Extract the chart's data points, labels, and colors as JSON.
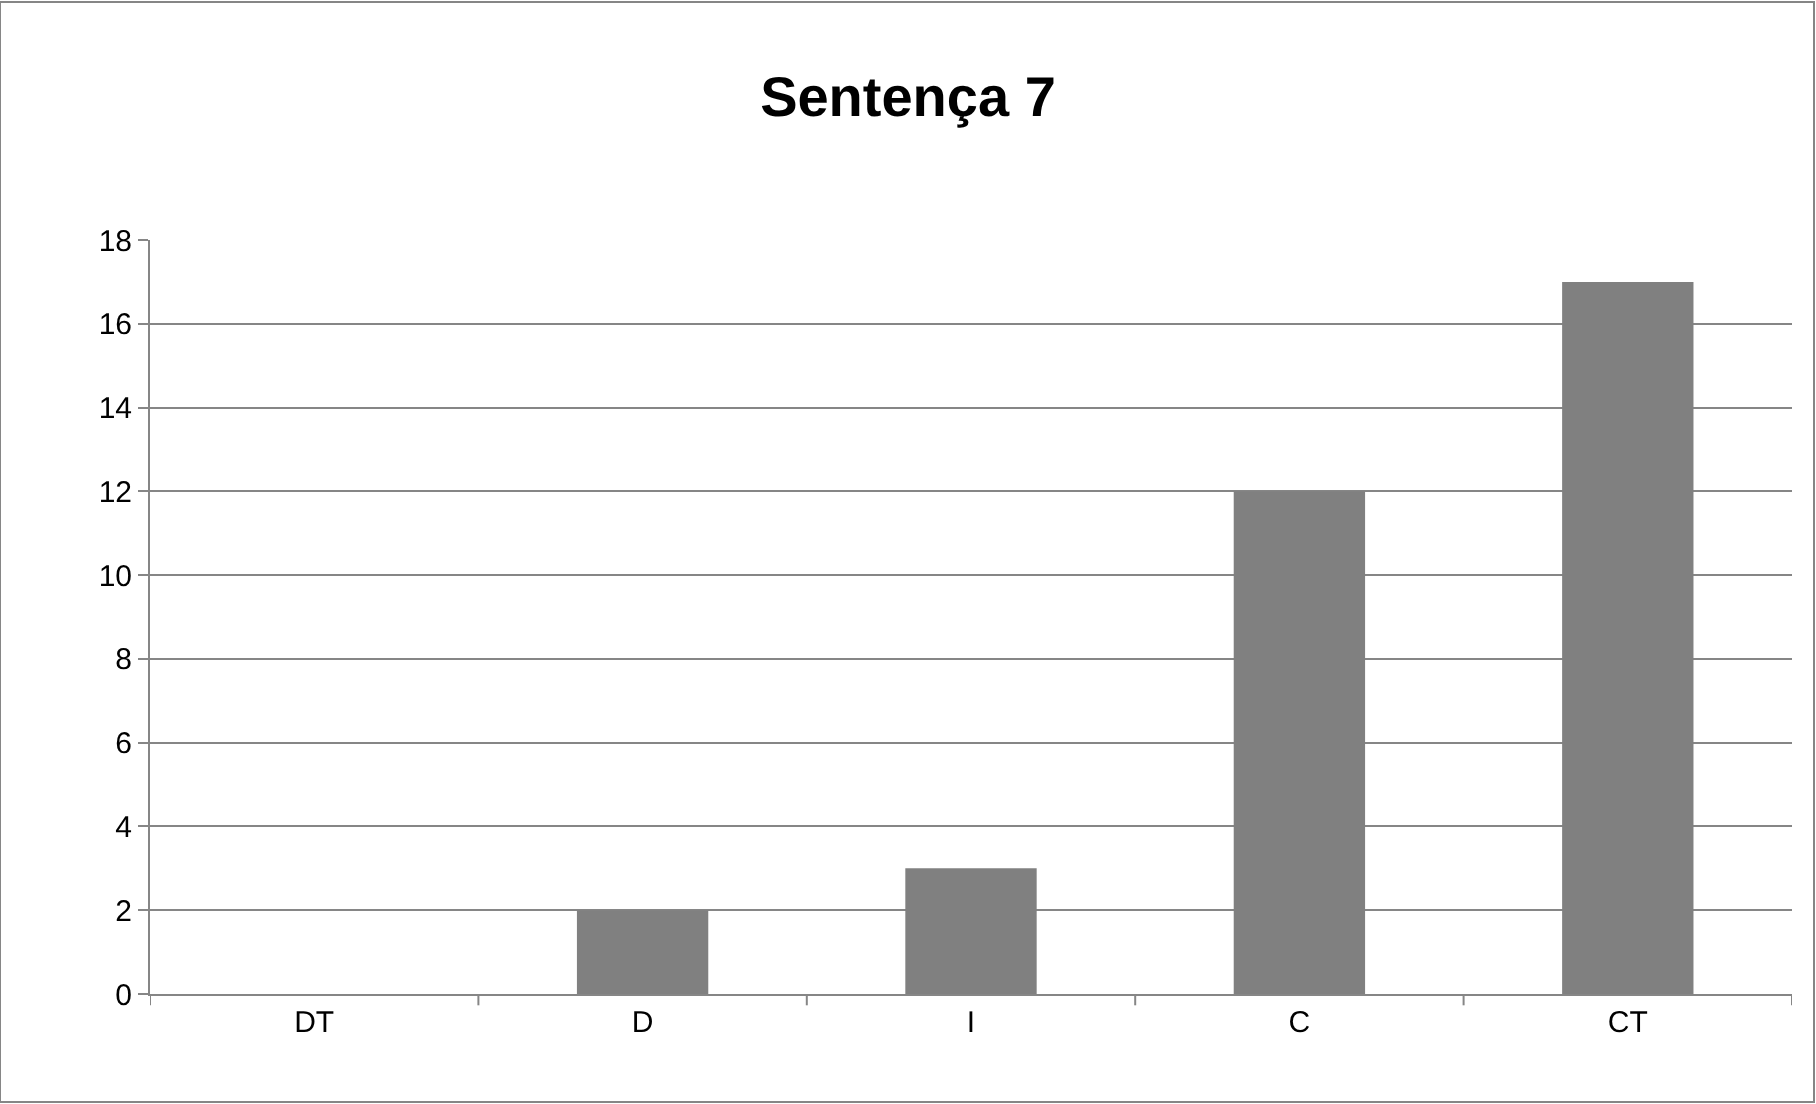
{
  "chart_data": {
    "type": "bar",
    "title": "Sentença 7",
    "categories": [
      "DT",
      "D",
      "I",
      "C",
      "CT"
    ],
    "values": [
      0,
      2,
      3,
      12,
      17
    ],
    "color": "#808080",
    "ylim": [
      0,
      18
    ],
    "yticks": [
      0,
      2,
      4,
      6,
      8,
      10,
      12,
      14,
      16,
      18
    ],
    "grid": "y",
    "legend": false
  }
}
